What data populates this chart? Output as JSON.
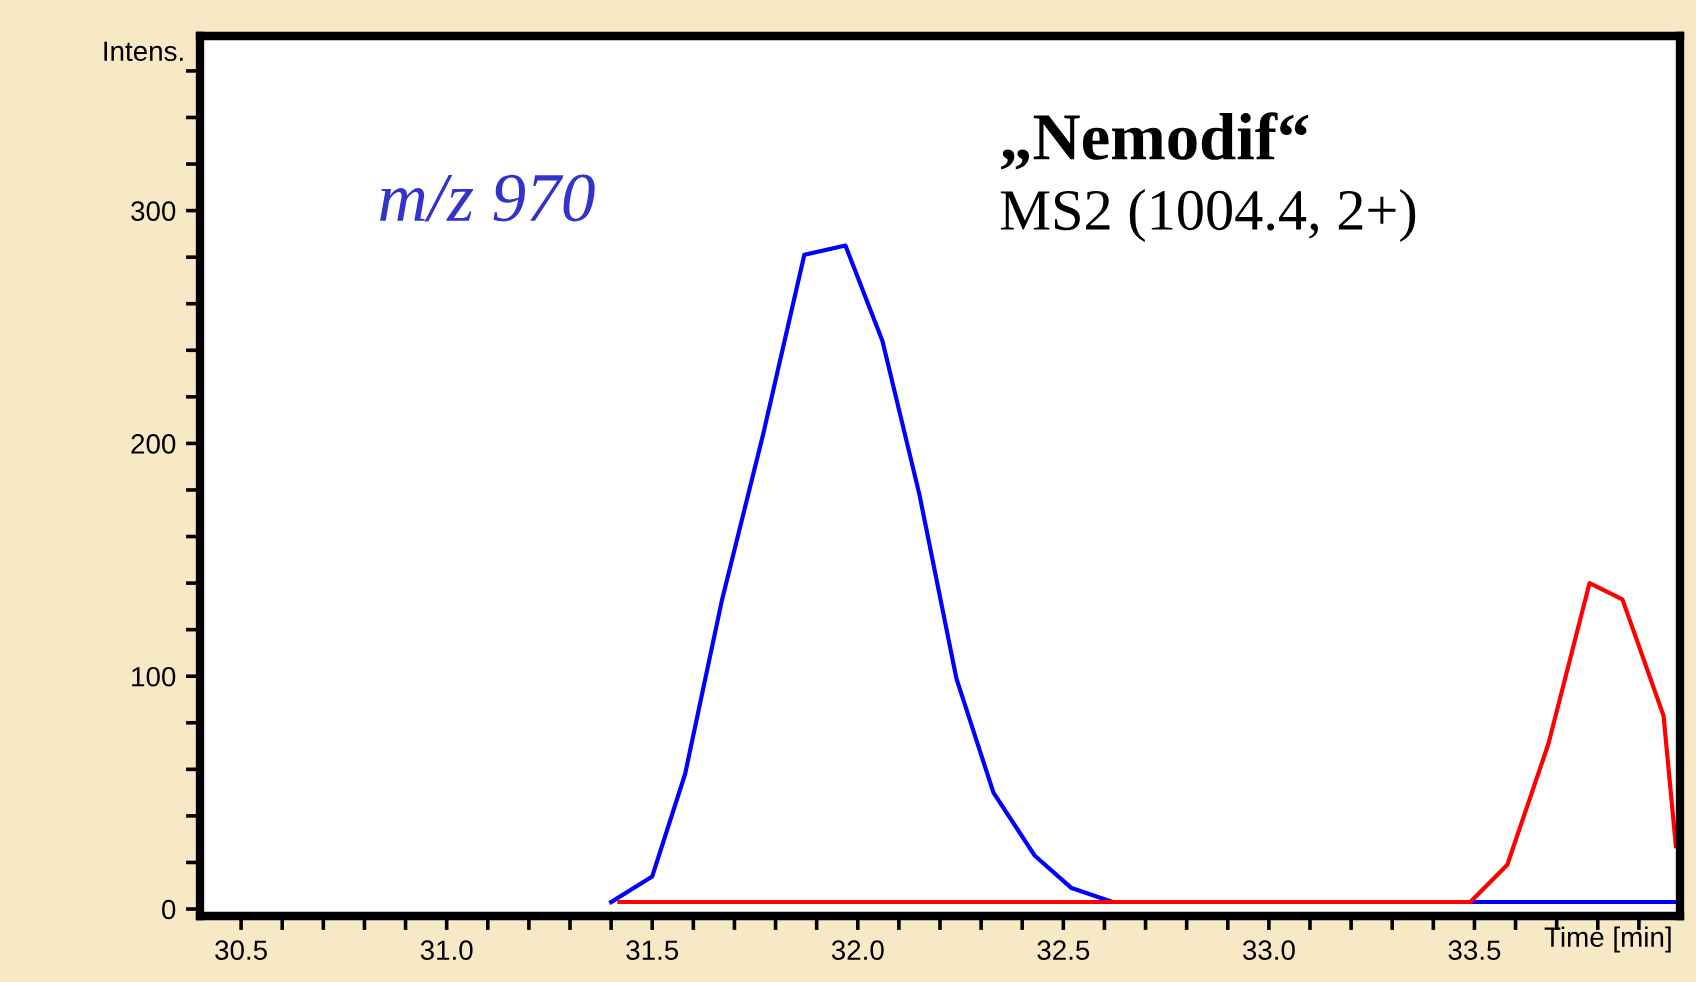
{
  "chart_data": {
    "type": "line",
    "ylabel": "Intens.",
    "xlabel": "Time [min]",
    "annotations": [
      "m/z 970",
      "„Nemodif“",
      "MS2 (1004.4, 2+)"
    ],
    "series": [
      {
        "color": "#0000ff",
        "x": [
          31.4,
          31.5,
          31.58,
          31.67,
          31.77,
          31.87,
          31.97,
          32.06,
          32.15,
          32.24,
          32.33,
          32.43,
          32.52,
          32.62,
          33.99
        ],
        "values": [
          3,
          14,
          58,
          133,
          204,
          281,
          285,
          244,
          178,
          99,
          50,
          23,
          9,
          3,
          3
        ]
      },
      {
        "color": "#ff0000",
        "x": [
          31.42,
          31.5,
          31.6,
          33.49,
          33.58,
          33.68,
          33.78,
          33.86,
          33.96,
          33.99
        ],
        "values": [
          3,
          3,
          3,
          3,
          19,
          71,
          140,
          133,
          83,
          27
        ]
      }
    ],
    "xlim": [
      30.4,
      34.0
    ],
    "ylim": [
      -3,
      375
    ],
    "xticks": [
      {
        "value": 30.5,
        "label": "30.5"
      },
      {
        "value": 30.6,
        "label": null
      },
      {
        "value": 30.7,
        "label": null
      },
      {
        "value": 30.8,
        "label": null
      },
      {
        "value": 30.9,
        "label": null
      },
      {
        "value": 31.0,
        "label": "31.0"
      },
      {
        "value": 31.1,
        "label": null
      },
      {
        "value": 31.2,
        "label": null
      },
      {
        "value": 31.3,
        "label": null
      },
      {
        "value": 31.4,
        "label": null
      },
      {
        "value": 31.5,
        "label": "31.5"
      },
      {
        "value": 31.6,
        "label": null
      },
      {
        "value": 31.7,
        "label": null
      },
      {
        "value": 31.8,
        "label": null
      },
      {
        "value": 31.9,
        "label": null
      },
      {
        "value": 32.0,
        "label": "32.0"
      },
      {
        "value": 32.1,
        "label": null
      },
      {
        "value": 32.2,
        "label": null
      },
      {
        "value": 32.3,
        "label": null
      },
      {
        "value": 32.4,
        "label": null
      },
      {
        "value": 32.5,
        "label": "32.5"
      },
      {
        "value": 32.6,
        "label": null
      },
      {
        "value": 32.7,
        "label": null
      },
      {
        "value": 32.8,
        "label": null
      },
      {
        "value": 32.9,
        "label": null
      },
      {
        "value": 33.0,
        "label": "33.0"
      },
      {
        "value": 33.1,
        "label": null
      },
      {
        "value": 33.2,
        "label": null
      },
      {
        "value": 33.3,
        "label": null
      },
      {
        "value": 33.4,
        "label": null
      },
      {
        "value": 33.5,
        "label": "33.5"
      },
      {
        "value": 33.6,
        "label": null
      },
      {
        "value": 33.7,
        "label": null
      },
      {
        "value": 33.8,
        "label": null
      },
      {
        "value": 33.9,
        "label": null
      }
    ],
    "yticks": [
      0,
      {
        "value": 20,
        "label": null
      },
      {
        "value": 40,
        "label": null
      },
      {
        "value": 60,
        "label": null
      },
      {
        "value": 80,
        "label": null
      },
      100,
      {
        "value": 120,
        "label": null
      },
      {
        "value": 140,
        "label": null
      },
      {
        "value": 160,
        "label": null
      },
      {
        "value": 180,
        "label": null
      },
      200,
      {
        "value": 220,
        "label": null
      },
      {
        "value": 240,
        "label": null
      },
      {
        "value": 260,
        "label": null
      },
      {
        "value": 280,
        "label": null
      },
      300,
      {
        "value": 320,
        "label": null
      },
      {
        "value": 340,
        "label": null
      },
      {
        "value": 360,
        "label": null
      }
    ],
    "grid": false,
    "legend": false,
    "marker": "none",
    "line_style": "solid"
  }
}
